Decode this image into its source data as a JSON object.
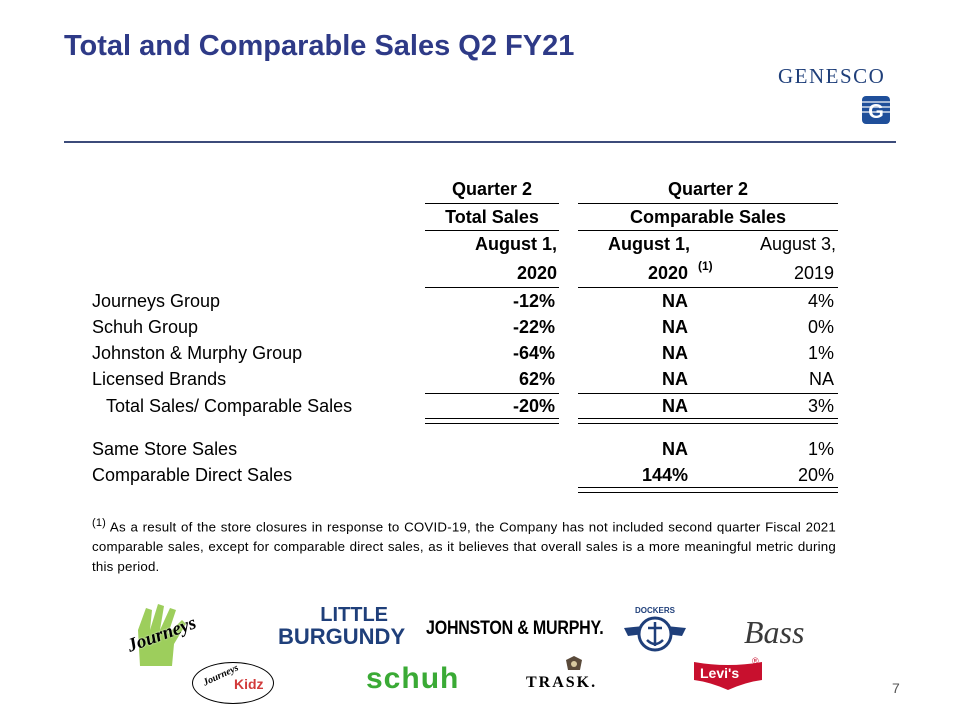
{
  "slide": {
    "title": "Total and Comparable Sales Q2 FY21",
    "logo_text": "GENESCO",
    "page_number": "7"
  },
  "table": {
    "header": {
      "group1_top": "Quarter 2",
      "group1_sub": "Total Sales",
      "group2_top": "Quarter 2",
      "group2_sub": "Comparable Sales",
      "col1_line1": "August 1,",
      "col1_line2": "2020",
      "col2_line1": "August 1,",
      "col2_line2": "2020",
      "col2_note": "(1)",
      "col3_line1": "August 3,",
      "col3_line2": "2019"
    },
    "rows": [
      {
        "label": "Journeys Group",
        "total": "-12%",
        "comp2020": "NA",
        "comp2019": "4%"
      },
      {
        "label": "Schuh Group",
        "total": "-22%",
        "comp2020": "NA",
        "comp2019": "0%"
      },
      {
        "label": "Johnston & Murphy Group",
        "total": "-64%",
        "comp2020": "NA",
        "comp2019": "1%"
      },
      {
        "label": "Licensed Brands",
        "total": "62%",
        "comp2020": "NA",
        "comp2019": "NA"
      },
      {
        "label": "Total Sales/ Comparable Sales",
        "total": "-20%",
        "comp2020": "NA",
        "comp2019": "3%"
      }
    ],
    "extra_rows": [
      {
        "label": "Same Store Sales",
        "comp2020": "NA",
        "comp2019": "1%"
      },
      {
        "label": "Comparable Direct Sales",
        "comp2020": "144%",
        "comp2019": "20%"
      }
    ]
  },
  "footnote": {
    "marker": "(1)",
    "text": " As a result of the store closures in response to COVID-19, the Company has not included second quarter Fiscal 2021 comparable sales, except for comparable direct sales, as it believes that overall sales is a more meaningful metric during this period."
  },
  "brands": {
    "journeys": "Journeys",
    "journeys_kidz_1": "Journeys",
    "journeys_kidz_2": "Kidz",
    "little_burgundy_1": "LITTLE",
    "little_burgundy_2": "BURGUNDY",
    "johnston_murphy": "JOHNSTON & MURPHY.",
    "schuh": "schuh",
    "dockers": "DOCKERS",
    "trask": "TRASK.",
    "bass": "Bass",
    "levis": "Levi's"
  }
}
